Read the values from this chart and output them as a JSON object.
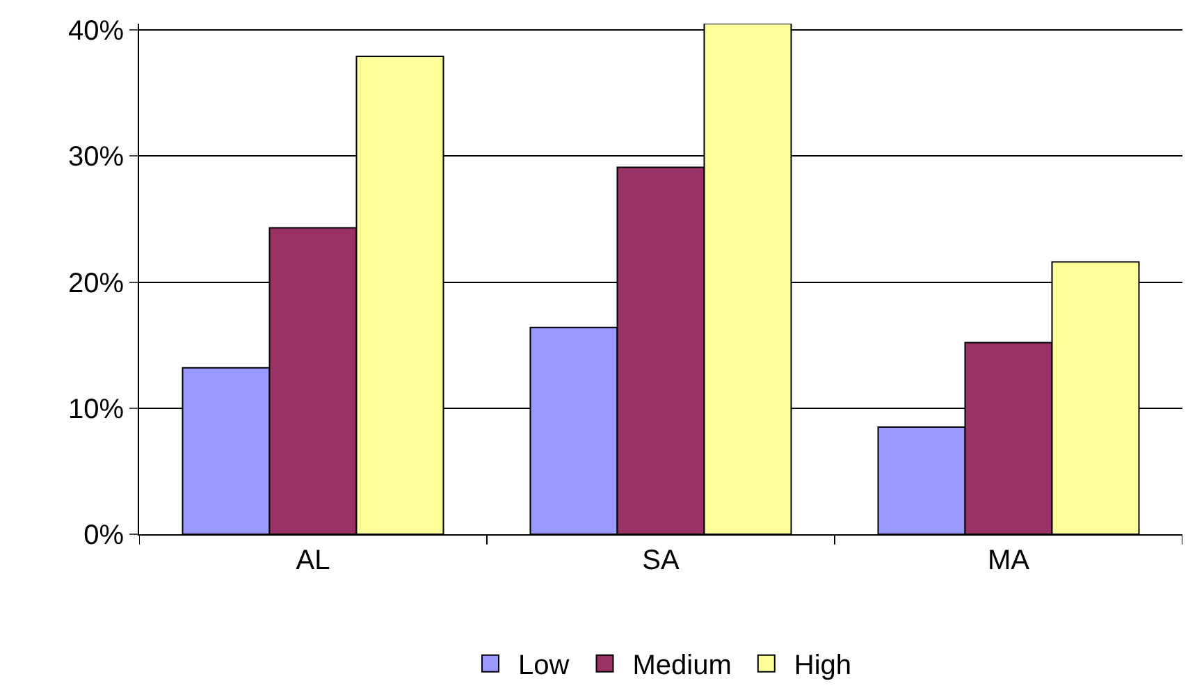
{
  "chart_data": {
    "type": "bar",
    "categories": [
      "AL",
      "SA",
      "MA"
    ],
    "series": [
      {
        "name": "Low",
        "color": "#9999ff",
        "values": [
          13.2,
          16.4,
          8.5
        ]
      },
      {
        "name": "Medium",
        "color": "#993366",
        "values": [
          24.3,
          29.1,
          15.2
        ]
      },
      {
        "name": "High",
        "color": "#ffff99",
        "values": [
          37.9,
          40.5,
          21.6
        ]
      }
    ],
    "ylim": [
      0,
      40.5
    ],
    "yticks": [
      {
        "value": 0,
        "label": "0%"
      },
      {
        "value": 10,
        "label": "10%"
      },
      {
        "value": 20,
        "label": "20%"
      },
      {
        "value": 30,
        "label": "30%"
      },
      {
        "value": 40,
        "label": "40%"
      }
    ],
    "grid": "y",
    "legend": "bottom"
  }
}
